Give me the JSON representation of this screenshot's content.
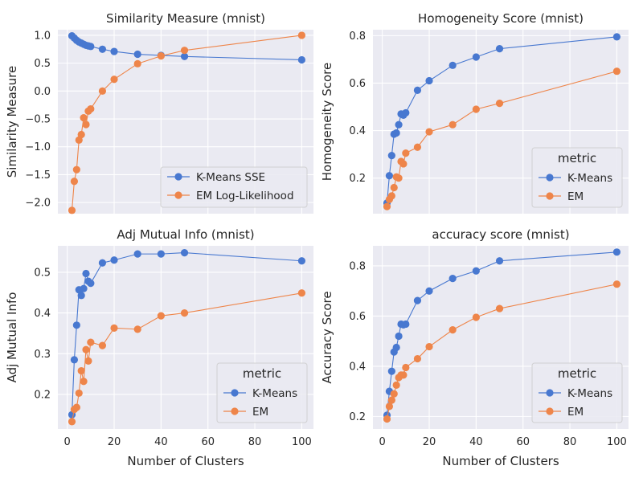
{
  "chart_data": [
    {
      "type": "line",
      "title": "Similarity Measure (mnist)",
      "xlabel": "",
      "ylabel": "Similarity Measure",
      "xlim": [
        -4,
        105
      ],
      "ylim": [
        -2.2,
        1.1
      ],
      "xticks": [],
      "yticks": [
        -2.0,
        -1.5,
        -1.0,
        -0.5,
        0.0,
        0.5,
        1.0
      ],
      "ytick_labels": [
        "−2.0",
        "−1.5",
        "−1.0",
        "−0.5",
        "0.0",
        "0.5",
        "1.0"
      ],
      "legend": {
        "title": "",
        "position": "lower-right"
      },
      "series": [
        {
          "name": "K-Means SSE",
          "color": "#4878d0",
          "x": [
            2,
            3,
            4,
            5,
            6,
            7,
            8,
            9,
            10,
            15,
            20,
            30,
            40,
            50,
            100
          ],
          "y": [
            0.99,
            0.95,
            0.91,
            0.88,
            0.86,
            0.84,
            0.82,
            0.81,
            0.8,
            0.75,
            0.71,
            0.66,
            0.64,
            0.62,
            0.56
          ]
        },
        {
          "name": "EM Log-Likelihood",
          "color": "#ee854a",
          "x": [
            2,
            3,
            4,
            5,
            6,
            7,
            8,
            9,
            10,
            15,
            20,
            30,
            40,
            50,
            100
          ],
          "y": [
            -2.14,
            -1.62,
            -1.41,
            -0.88,
            -0.78,
            -0.48,
            -0.6,
            -0.36,
            -0.32,
            0.0,
            0.21,
            0.49,
            0.63,
            0.73,
            1.0
          ]
        }
      ]
    },
    {
      "type": "line",
      "title": "Homogeneity Score (mnist)",
      "xlabel": "",
      "ylabel": "Homogeneity Score",
      "xlim": [
        -4,
        105
      ],
      "ylim": [
        0.05,
        0.825
      ],
      "xticks": [],
      "yticks": [
        0.2,
        0.4,
        0.6,
        0.8
      ],
      "ytick_labels": [
        "0.2",
        "0.4",
        "0.6",
        "0.8"
      ],
      "legend": {
        "title": "metric",
        "position": "lower-right"
      },
      "series": [
        {
          "name": "K-Means",
          "color": "#4878d0",
          "x": [
            2,
            3,
            4,
            5,
            6,
            7,
            8,
            9,
            10,
            15,
            20,
            30,
            40,
            50,
            100
          ],
          "y": [
            0.095,
            0.21,
            0.295,
            0.385,
            0.39,
            0.425,
            0.47,
            0.465,
            0.475,
            0.57,
            0.61,
            0.675,
            0.71,
            0.745,
            0.795
          ]
        },
        {
          "name": "EM",
          "color": "#ee854a",
          "x": [
            2,
            3,
            4,
            5,
            6,
            7,
            8,
            9,
            10,
            15,
            20,
            30,
            40,
            50,
            100
          ],
          "y": [
            0.08,
            0.11,
            0.125,
            0.16,
            0.205,
            0.2,
            0.27,
            0.26,
            0.305,
            0.33,
            0.395,
            0.425,
            0.49,
            0.515,
            0.65
          ]
        }
      ]
    },
    {
      "type": "line",
      "title": "Adj Mutual Info (mnist)",
      "xlabel": "Number of Clusters",
      "ylabel": "Adj Mutual Info",
      "xlim": [
        -4,
        105
      ],
      "ylim": [
        0.115,
        0.565
      ],
      "xticks": [
        0,
        20,
        40,
        60,
        80,
        100
      ],
      "yticks": [
        0.2,
        0.3,
        0.4,
        0.5
      ],
      "ytick_labels": [
        "0.2",
        "0.3",
        "0.4",
        "0.5"
      ],
      "legend": {
        "title": "metric",
        "position": "lower-right"
      },
      "series": [
        {
          "name": "K-Means",
          "color": "#4878d0",
          "x": [
            2,
            3,
            4,
            5,
            6,
            7,
            8,
            9,
            10,
            15,
            20,
            30,
            40,
            50,
            100
          ],
          "y": [
            0.15,
            0.285,
            0.37,
            0.457,
            0.443,
            0.46,
            0.497,
            0.478,
            0.473,
            0.523,
            0.53,
            0.545,
            0.545,
            0.548,
            0.528
          ]
        },
        {
          "name": "EM",
          "color": "#ee854a",
          "x": [
            2,
            3,
            4,
            5,
            6,
            7,
            8,
            9,
            10,
            15,
            20,
            30,
            40,
            50,
            100
          ],
          "y": [
            0.133,
            0.163,
            0.168,
            0.203,
            0.258,
            0.232,
            0.31,
            0.282,
            0.328,
            0.32,
            0.363,
            0.36,
            0.393,
            0.4,
            0.449
          ]
        }
      ]
    },
    {
      "type": "line",
      "title": "accuracy score (mnist)",
      "xlabel": "Number of Clusters",
      "ylabel": "Accuracy Score",
      "xlim": [
        -4,
        105
      ],
      "ylim": [
        0.15,
        0.88
      ],
      "xticks": [
        0,
        20,
        40,
        60,
        80,
        100
      ],
      "yticks": [
        0.2,
        0.4,
        0.6,
        0.8
      ],
      "ytick_labels": [
        "0.2",
        "0.4",
        "0.6",
        "0.8"
      ],
      "legend": {
        "title": "metric",
        "position": "lower-right"
      },
      "series": [
        {
          "name": "K-Means",
          "color": "#4878d0",
          "x": [
            2,
            3,
            4,
            5,
            6,
            7,
            8,
            9,
            10,
            15,
            20,
            30,
            40,
            50,
            100
          ],
          "y": [
            0.205,
            0.3,
            0.38,
            0.457,
            0.475,
            0.52,
            0.568,
            0.565,
            0.568,
            0.662,
            0.7,
            0.75,
            0.78,
            0.82,
            0.855
          ]
        },
        {
          "name": "EM",
          "color": "#ee854a",
          "x": [
            2,
            3,
            4,
            5,
            6,
            7,
            8,
            9,
            10,
            15,
            20,
            30,
            40,
            50,
            100
          ],
          "y": [
            0.19,
            0.24,
            0.265,
            0.29,
            0.325,
            0.355,
            0.365,
            0.365,
            0.395,
            0.43,
            0.478,
            0.545,
            0.595,
            0.63,
            0.727
          ]
        }
      ]
    }
  ]
}
